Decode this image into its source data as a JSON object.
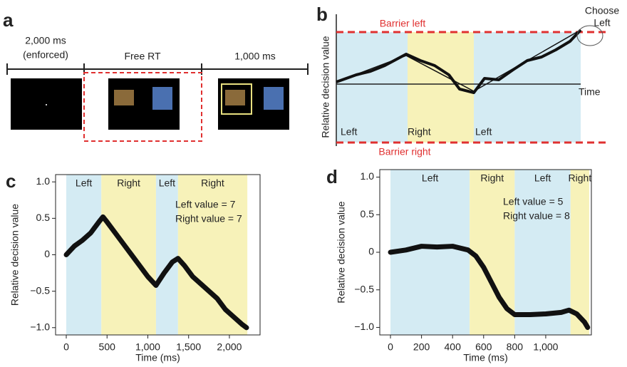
{
  "panel_a": {
    "label": "a",
    "phase_1": [
      "2,000 ms",
      "(enforced)"
    ],
    "phase_2": "Free RT",
    "phase_3": "1,000 ms"
  },
  "panel_b": {
    "label": "b",
    "y_label": "Relative decision value",
    "x_label": "Time",
    "barrier_top": "Barrier left",
    "barrier_bottom": "Barrier right",
    "choice": [
      "Choose",
      "Left"
    ],
    "segments": [
      "Left",
      "Right",
      "Left"
    ]
  },
  "chart_data": [
    {
      "type": "line",
      "panel_label": "c",
      "xlabel": "Time (ms)",
      "ylabel": "Relative decision value",
      "annotations": [
        "Left value = 7",
        "Right value = 7"
      ],
      "xlim": [
        -131,
        2376
      ],
      "ylim": [
        -1.1,
        1.1
      ],
      "xticks": [
        0,
        500,
        {
          "value": 1000,
          "label": "1,000"
        },
        {
          "value": 1500,
          "label": "1,500"
        },
        {
          "value": 2000,
          "label": "2,000"
        }
      ],
      "yticks": [
        {
          "value": -1,
          "label": "−1.0"
        },
        {
          "value": -0.5,
          "label": "−0.5"
        },
        0,
        0.5,
        {
          "value": 1,
          "label": "1.0"
        }
      ],
      "regions": [
        {
          "label": "Left",
          "start": 0,
          "end": 430,
          "color": "#d4ebf3"
        },
        {
          "label": "Right",
          "start": 430,
          "end": 1100,
          "color": "#f7f2b9"
        },
        {
          "label": "Left",
          "start": 1100,
          "end": 1370,
          "color": "#d4ebf3"
        },
        {
          "label": "Right",
          "start": 1370,
          "end": 2220,
          "color": "#f7f2b9"
        }
      ],
      "series": [
        {
          "color": "#111111",
          "x": [
            0,
            100,
            200,
            300,
            400,
            450,
            500,
            600,
            700,
            800,
            900,
            1000,
            1100,
            1200,
            1300,
            1370,
            1450,
            1550,
            1650,
            1750,
            1850,
            1950,
            2050,
            2150,
            2210
          ],
          "values": [
            0,
            0.12,
            0.2,
            0.3,
            0.45,
            0.52,
            0.45,
            0.3,
            0.15,
            0,
            -0.15,
            -0.3,
            -0.42,
            -0.25,
            -0.1,
            -0.05,
            -0.15,
            -0.3,
            -0.4,
            -0.5,
            -0.6,
            -0.75,
            -0.85,
            -0.95,
            -1
          ]
        }
      ]
    },
    {
      "type": "line",
      "panel_label": "d",
      "xlabel": "Time (ms)",
      "ylabel": "Relative decision value",
      "annotations": [
        "Left value = 5",
        "Right value = 8"
      ],
      "xlim": [
        -69,
        1294
      ],
      "ylim": [
        -1.1,
        1.1
      ],
      "xticks": [
        0,
        200,
        400,
        600,
        800,
        {
          "value": 1000,
          "label": "1,000"
        }
      ],
      "yticks": [
        {
          "value": -1,
          "label": "−1.0"
        },
        {
          "value": -0.5,
          "label": "−0.5"
        },
        0,
        0.5,
        {
          "value": 1,
          "label": "1.0"
        }
      ],
      "regions": [
        {
          "label": "Left",
          "start": 0,
          "end": 510,
          "color": "#d4ebf3"
        },
        {
          "label": "Right",
          "start": 510,
          "end": 800,
          "color": "#f7f2b9"
        },
        {
          "label": "Left",
          "start": 800,
          "end": 1160,
          "color": "#d4ebf3"
        },
        {
          "label": "Right",
          "start": 1160,
          "end": 1280,
          "color": "#f7f2b9"
        }
      ],
      "series": [
        {
          "color": "#111111",
          "x": [
            0,
            100,
            200,
            300,
            400,
            500,
            550,
            600,
            650,
            700,
            750,
            800,
            900,
            1000,
            1100,
            1150,
            1200,
            1250,
            1270
          ],
          "values": [
            0,
            0.03,
            0.08,
            0.07,
            0.08,
            0.03,
            -0.05,
            -0.2,
            -0.4,
            -0.6,
            -0.75,
            -0.83,
            -0.83,
            -0.82,
            -0.8,
            -0.77,
            -0.82,
            -0.93,
            -1
          ]
        }
      ]
    }
  ]
}
